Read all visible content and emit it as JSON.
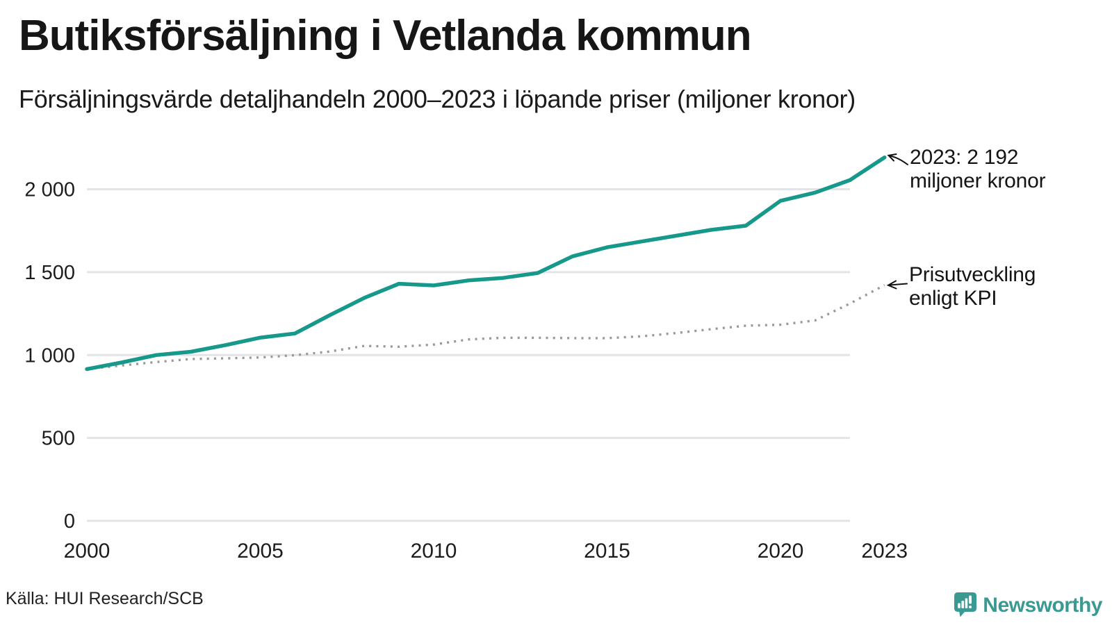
{
  "header": {
    "title": "Butiksförsäljning i Vetlanda kommun",
    "subtitle": "Försäljningsvärde detaljhandeln 2000–2023 i löpande priser (miljoner kronor)"
  },
  "chart_data": {
    "type": "line",
    "title": "Butiksförsäljning i Vetlanda kommun",
    "subtitle": "Försäljningsvärde detaljhandeln 2000–2023 i löpande priser (miljoner kronor)",
    "x": [
      2000,
      2001,
      2002,
      2003,
      2004,
      2005,
      2006,
      2007,
      2008,
      2009,
      2010,
      2011,
      2012,
      2013,
      2014,
      2015,
      2016,
      2017,
      2018,
      2019,
      2020,
      2021,
      2022,
      2023
    ],
    "series": [
      {
        "name": "Butiksförsäljning i löpande priser (miljoner kronor)",
        "color": "#16988a",
        "style": "solid",
        "values": [
          915,
          955,
          1000,
          1020,
          1060,
          1105,
          1130,
          1240,
          1345,
          1430,
          1420,
          1450,
          1465,
          1495,
          1595,
          1650,
          1685,
          1720,
          1755,
          1780,
          1930,
          1980,
          2055,
          2192
        ]
      },
      {
        "name": "Prisutveckling enligt KPI",
        "color": "#999999",
        "style": "dotted",
        "values": [
          915,
          937,
          958,
          976,
          980,
          985,
          999,
          1021,
          1055,
          1050,
          1063,
          1094,
          1104,
          1104,
          1102,
          1102,
          1113,
          1133,
          1156,
          1177,
          1183,
          1209,
          1310,
          1422
        ]
      }
    ],
    "xlabel": "",
    "ylabel": "miljoner kronor",
    "xlim": [
      2000,
      2023
    ],
    "ylim": [
      0,
      2200
    ],
    "y_ticks": [
      0,
      500,
      1000,
      1500,
      2000
    ],
    "x_ticks": [
      2000,
      2005,
      2010,
      2015,
      2020,
      2023
    ],
    "grid": "horizontal",
    "legend_position": "inline-annotations",
    "final_value_label": "2023: 2 192 miljoner kronor"
  },
  "axes": {
    "y_tick_labels": [
      "2 000",
      "1 500",
      "1 000",
      "500",
      "0"
    ],
    "x_tick_labels": [
      "2000",
      "2005",
      "2010",
      "2015",
      "2020",
      "2023"
    ]
  },
  "annotations": {
    "sales_line1": "2023: 2 192",
    "sales_line2": "miljoner kronor",
    "kpi_line1": "Prisutveckling",
    "kpi_line2": "enligt KPI"
  },
  "footer": {
    "source": "Källa: HUI Research/SCB",
    "brand": "Newsworthy"
  },
  "colors": {
    "sales_line": "#16988a",
    "kpi_dots": "#999999",
    "gridline": "#e4e4e8",
    "text": "#1a1a1a",
    "brand_teal": "#3a9a91"
  }
}
